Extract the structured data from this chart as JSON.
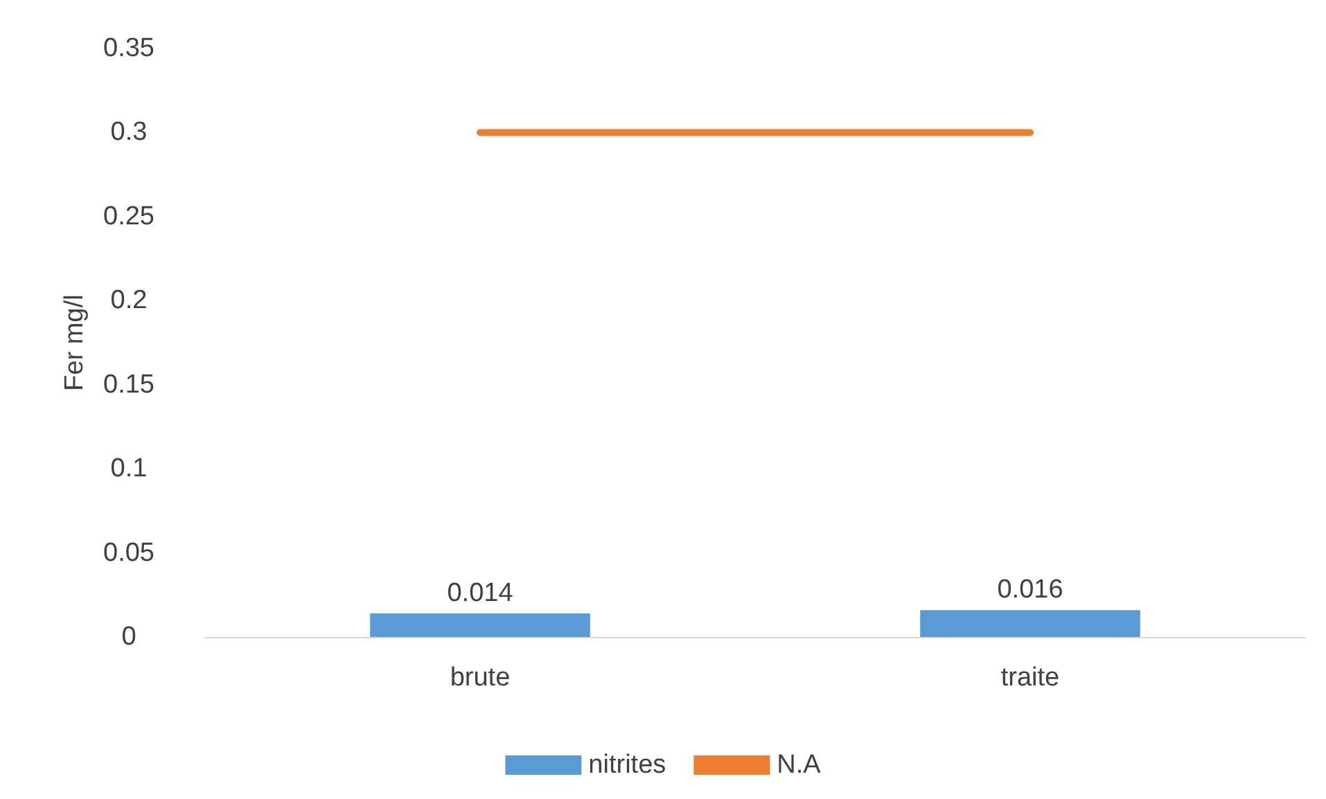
{
  "chart_data": {
    "type": "bar",
    "ylabel": "Fer mg/l",
    "categories": [
      "brute",
      "traite"
    ],
    "series": [
      {
        "name": "nitrites",
        "color": "#5b9bd5",
        "values": [
          0.014,
          0.016
        ],
        "value_labels": [
          "0.014",
          "0.016"
        ]
      },
      {
        "name": "N.A",
        "type": "line",
        "color": "#ed7d31",
        "values": [
          0.3,
          0.3
        ],
        "marker": "none"
      }
    ],
    "ylim": [
      0,
      0.35
    ],
    "yticks": [
      0,
      0.05,
      0.1,
      0.15,
      0.2,
      0.25,
      0.3,
      0.35
    ],
    "grid": false,
    "legend": "bottom"
  }
}
